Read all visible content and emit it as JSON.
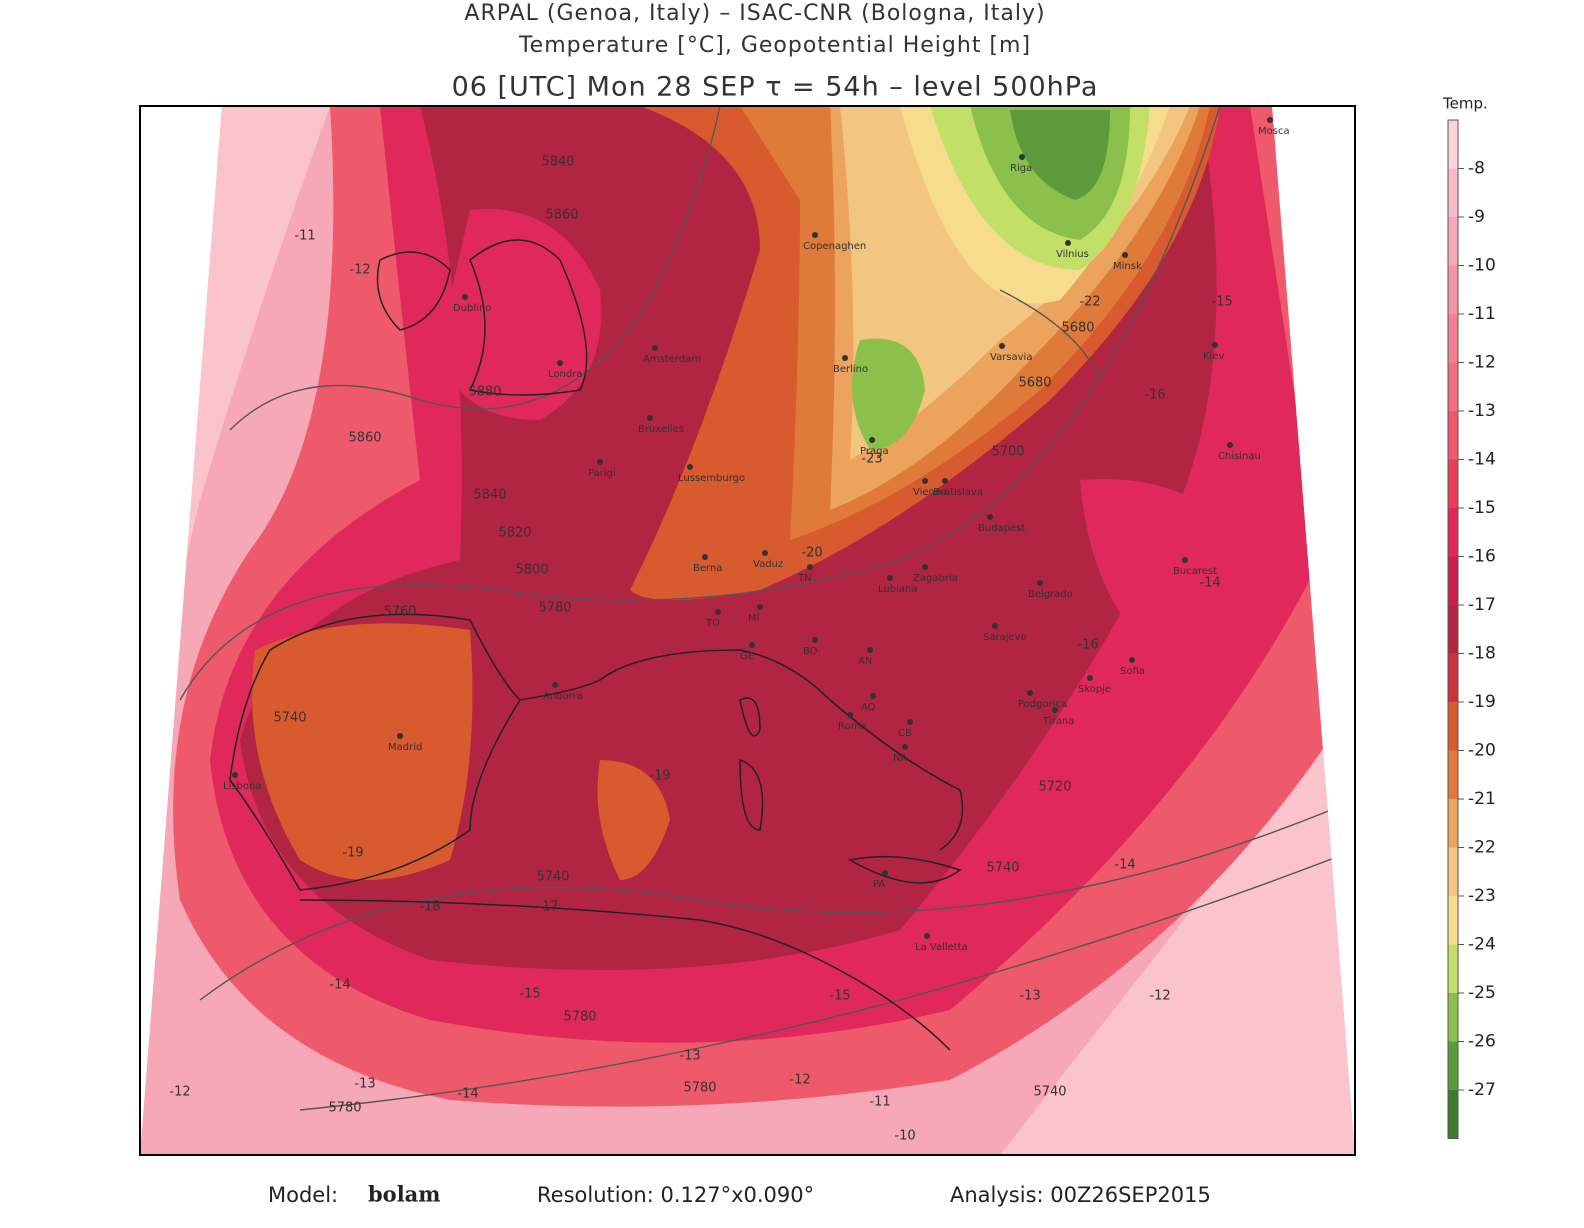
{
  "header": {
    "line1": "ARPAL (Genoa, Italy)  –  ISAC-CNR (Bologna, Italy)",
    "line2": "Temperature [°C], Geopotential Height [m]",
    "line3": "06 [UTC] Mon 28 SEP  τ = 54h  –  level 500hPa"
  },
  "colorbar": {
    "title": "Temp.",
    "ticks": [
      -8,
      -9,
      -10,
      -11,
      -12,
      -13,
      -14,
      -15,
      -16,
      -17,
      -18,
      -19,
      -20,
      -21,
      -22,
      -23,
      -24,
      -25,
      -26,
      -27
    ],
    "colors": [
      "#fcd4da",
      "#f9bcc6",
      "#f6a8b6",
      "#f495a6",
      "#f28293",
      "#f06f80",
      "#ee5a6c",
      "#ea3f5c",
      "#e0295a",
      "#c81f4d",
      "#b12542",
      "#c9343f",
      "#d85a2f",
      "#e07a3a",
      "#eba35e",
      "#f2c680",
      "#f7dc8e",
      "#c2e068",
      "#8cc04c",
      "#5c9a3c",
      "#417a2e"
    ]
  },
  "cities": [
    "Dublino",
    "Londra",
    "Amsterdam",
    "Bruxelles",
    "Parigi",
    "Lussemburgo",
    "Copenaghen",
    "Berlino",
    "Praga",
    "Varsavia",
    "Riga",
    "Vilnius",
    "Minsk",
    "Kiev",
    "Mosca",
    "Vienna",
    "Bratislava",
    "Budapest",
    "Chisinau",
    "Bucarest",
    "Berna",
    "Vaduz",
    "TN",
    "Lubiana",
    "Zagabria",
    "Belgrado",
    "Sarajevo",
    "Sofia",
    "Skopje",
    "Podgorica",
    "Tirana",
    "MI",
    "TO",
    "GE",
    "BO",
    "AN",
    "AQ",
    "Roma",
    "CB",
    "NA",
    "Andorra",
    "Madrid",
    "Lisbona",
    "PA",
    "La Valletta"
  ],
  "contour_labels": [
    "5840",
    "5860",
    "5860",
    "5880",
    "5840",
    "5820",
    "5800",
    "5780",
    "5760",
    "5740",
    "5740",
    "5740",
    "5780",
    "5780",
    "5680",
    "5680",
    "5700",
    "5720",
    "5740",
    "5780",
    "-11",
    "-12",
    "-14",
    "-15",
    "-16",
    "-17",
    "-18",
    "-19",
    "-19",
    "-20",
    "-22",
    "-23",
    "-15",
    "-16",
    "-14",
    "-13",
    "-12",
    "-11",
    "-10",
    "-15",
    "-14",
    "-13",
    "-12",
    "-14",
    "-12",
    "-13"
  ],
  "footer": {
    "model_label": "Model:",
    "model": "bolam",
    "resolution": "Resolution: 0.127°x0.090°",
    "analysis": "Analysis: 00Z26SEP2015"
  }
}
